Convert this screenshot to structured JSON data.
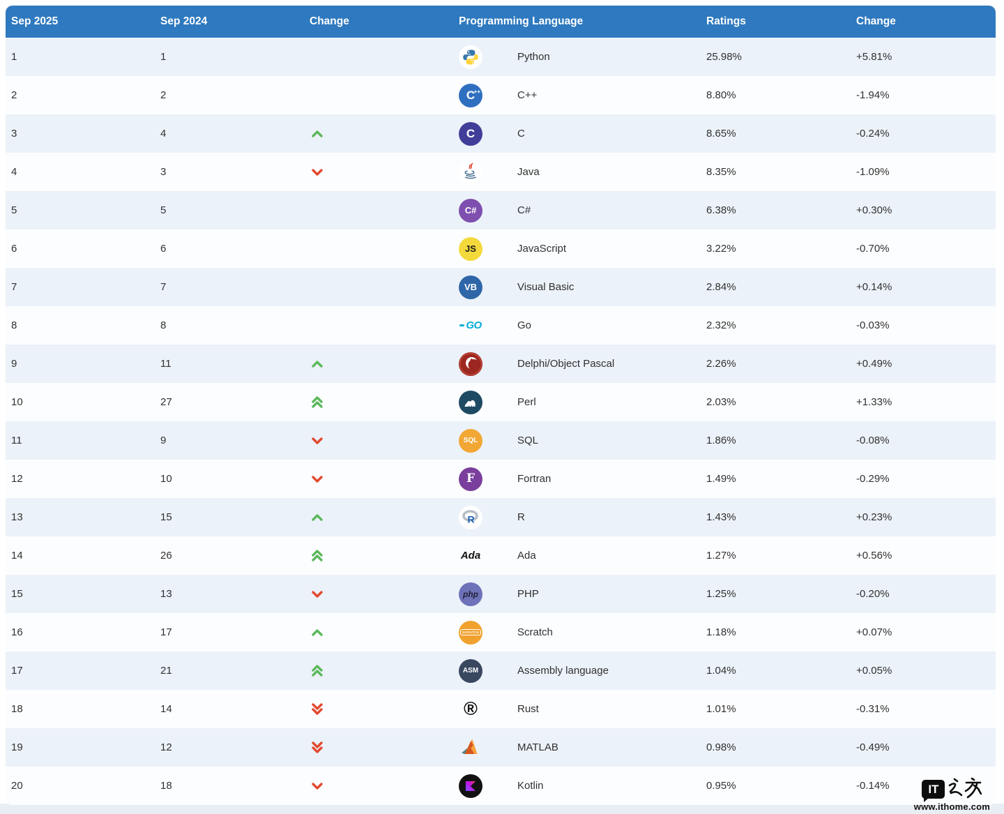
{
  "style": {
    "header_bg": "#2e79bf",
    "header_text": "#ffffff",
    "row_odd_bg": "#ecf2f9",
    "row_even_bg": "#fcfdff",
    "body_text": "#303030",
    "arrow_up_color": "#5cb85c",
    "arrow_down_color": "#e2492f",
    "bottom_strip_color": "#e9eef5"
  },
  "chart_data": {
    "type": "table",
    "columns": [
      "Sep 2025",
      "Sep 2024",
      "Change",
      "Programming Language",
      "Ratings",
      "Change"
    ],
    "rows": [
      {
        "rank_2025": "1",
        "rank_2024": "1",
        "change_dir": "none",
        "language": "Python",
        "rating": "25.98%",
        "change": "+5.81%",
        "icon": {
          "kind": "python",
          "name": "python-icon"
        }
      },
      {
        "rank_2025": "2",
        "rank_2024": "2",
        "change_dir": "none",
        "language": "C++",
        "rating": "8.80%",
        "change": "-1.94%",
        "icon": {
          "kind": "text",
          "name": "cpp-icon",
          "label": "C",
          "sup": "++",
          "bg": "#2f6fc0",
          "fg": "#ffffff",
          "size": 17
        }
      },
      {
        "rank_2025": "3",
        "rank_2024": "4",
        "change_dir": "up",
        "language": "C",
        "rating": "8.65%",
        "change": "-0.24%",
        "icon": {
          "kind": "text",
          "name": "c-icon",
          "label": "C",
          "bg": "#413e99",
          "fg": "#ffffff",
          "size": 17
        }
      },
      {
        "rank_2025": "4",
        "rank_2024": "3",
        "change_dir": "down",
        "language": "Java",
        "rating": "8.35%",
        "change": "-1.09%",
        "icon": {
          "kind": "java",
          "name": "java-icon"
        }
      },
      {
        "rank_2025": "5",
        "rank_2024": "5",
        "change_dir": "none",
        "language": "C#",
        "rating": "6.38%",
        "change": "+0.30%",
        "icon": {
          "kind": "text",
          "name": "csharp-icon",
          "label": "C#",
          "bg": "#7e4fae",
          "fg": "#ffffff",
          "size": 13
        }
      },
      {
        "rank_2025": "6",
        "rank_2024": "6",
        "change_dir": "none",
        "language": "JavaScript",
        "rating": "3.22%",
        "change": "-0.70%",
        "icon": {
          "kind": "text",
          "name": "javascript-icon",
          "label": "JS",
          "bg": "#f3d93b",
          "fg": "#1a1a1a",
          "size": 13,
          "weight": 800
        }
      },
      {
        "rank_2025": "7",
        "rank_2024": "7",
        "change_dir": "none",
        "language": "Visual Basic",
        "rating": "2.84%",
        "change": "+0.14%",
        "icon": {
          "kind": "text",
          "name": "visual-basic-icon",
          "label": "VB",
          "bg": "#2f66a8",
          "fg": "#ffffff",
          "size": 13
        }
      },
      {
        "rank_2025": "8",
        "rank_2024": "8",
        "change_dir": "none",
        "language": "Go",
        "rating": "2.32%",
        "change": "-0.03%",
        "icon": {
          "kind": "go",
          "name": "go-icon",
          "label": "GO",
          "fg": "#00acd7"
        }
      },
      {
        "rank_2025": "9",
        "rank_2024": "11",
        "change_dir": "up",
        "language": "Delphi/Object Pascal",
        "rating": "2.26%",
        "change": "+0.49%",
        "icon": {
          "kind": "delphi",
          "name": "delphi-icon"
        }
      },
      {
        "rank_2025": "10",
        "rank_2024": "27",
        "change_dir": "up2",
        "language": "Perl",
        "rating": "2.03%",
        "change": "+1.33%",
        "icon": {
          "kind": "perl",
          "name": "perl-icon"
        }
      },
      {
        "rank_2025": "11",
        "rank_2024": "9",
        "change_dir": "down",
        "language": "SQL",
        "rating": "1.86%",
        "change": "-0.08%",
        "icon": {
          "kind": "text",
          "name": "sql-icon",
          "label": "SQL",
          "bg": "#f2a735",
          "fg": "#ffffff",
          "size": 10,
          "weight": 800
        }
      },
      {
        "rank_2025": "12",
        "rank_2024": "10",
        "change_dir": "down",
        "language": "Fortran",
        "rating": "1.49%",
        "change": "-0.29%",
        "icon": {
          "kind": "text",
          "name": "fortran-icon",
          "label": "F",
          "bg": "#7a3f9d",
          "fg": "#ffffff",
          "size": 17,
          "serif": true
        }
      },
      {
        "rank_2025": "13",
        "rank_2024": "15",
        "change_dir": "up",
        "language": "R",
        "rating": "1.43%",
        "change": "+0.23%",
        "icon": {
          "kind": "r",
          "name": "r-icon"
        }
      },
      {
        "rank_2025": "14",
        "rank_2024": "26",
        "change_dir": "up2",
        "language": "Ada",
        "rating": "1.27%",
        "change": "+0.56%",
        "icon": {
          "kind": "plain",
          "name": "ada-icon",
          "label": "Ada",
          "fg": "#111111",
          "italic": true,
          "size": 15
        }
      },
      {
        "rank_2025": "15",
        "rank_2024": "13",
        "change_dir": "down",
        "language": "PHP",
        "rating": "1.25%",
        "change": "-0.20%",
        "icon": {
          "kind": "text",
          "name": "php-icon",
          "label": "php",
          "bg": "#6e72b8",
          "fg": "#22223a",
          "size": 12,
          "italic": true,
          "weight": 800
        }
      },
      {
        "rank_2025": "16",
        "rank_2024": "17",
        "change_dir": "up",
        "language": "Scratch",
        "rating": "1.18%",
        "change": "+0.07%",
        "icon": {
          "kind": "scratch",
          "name": "scratch-icon",
          "bg": "#f0a12e",
          "label": "SCRATCH"
        }
      },
      {
        "rank_2025": "17",
        "rank_2024": "21",
        "change_dir": "up2",
        "language": "Assembly language",
        "rating": "1.04%",
        "change": "+0.05%",
        "icon": {
          "kind": "text",
          "name": "assembly-icon",
          "label": "ASM",
          "bg": "#39475f",
          "fg": "#ffffff",
          "size": 10,
          "weight": 800
        }
      },
      {
        "rank_2025": "18",
        "rank_2024": "14",
        "change_dir": "down2",
        "language": "Rust",
        "rating": "1.01%",
        "change": "-0.31%",
        "icon": {
          "kind": "plain",
          "name": "rust-icon",
          "label": "®",
          "fg": "#111111",
          "size": 27
        }
      },
      {
        "rank_2025": "19",
        "rank_2024": "12",
        "change_dir": "down2",
        "language": "MATLAB",
        "rating": "0.98%",
        "change": "-0.49%",
        "icon": {
          "kind": "matlab",
          "name": "matlab-icon"
        }
      },
      {
        "rank_2025": "20",
        "rank_2024": "18",
        "change_dir": "down",
        "language": "Kotlin",
        "rating": "0.95%",
        "change": "-0.14%",
        "icon": {
          "kind": "kotlin",
          "name": "kotlin-icon"
        }
      }
    ]
  },
  "watermark": {
    "logo_text": "IT",
    "logo_cn": "之家",
    "url": "www.ithome.com"
  }
}
